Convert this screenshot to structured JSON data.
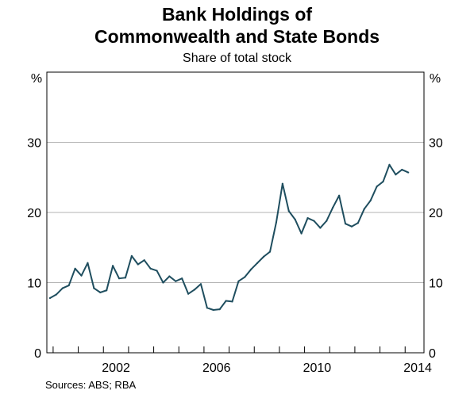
{
  "chart_data": {
    "type": "line",
    "title_lines": [
      "Bank Holdings of",
      "Commonwealth and State Bonds"
    ],
    "subtitle": "Share of total stock",
    "ylabel_left": "%",
    "ylabel_right": "%",
    "ylim": [
      0,
      40
    ],
    "yticks": [
      0,
      10,
      20,
      30
    ],
    "xlim": [
      1999.75,
      2014.75
    ],
    "xtick_labels": [
      {
        "value": 2002,
        "label": "2002"
      },
      {
        "value": 2006,
        "label": "2006"
      },
      {
        "value": 2010,
        "label": "2010"
      },
      {
        "value": 2014,
        "label": "2014"
      }
    ],
    "grid": "horizontal",
    "line_color": "#1f4e5f",
    "series": [
      {
        "x": [
          1999.875,
          2000.125,
          2000.375,
          2000.625,
          2000.875,
          2001.125,
          2001.375,
          2001.625,
          2001.875,
          2002.125,
          2002.375,
          2002.625,
          2002.875,
          2003.125,
          2003.375,
          2003.625,
          2003.875,
          2004.125,
          2004.375,
          2004.625,
          2004.875,
          2005.125,
          2005.375,
          2005.625,
          2005.875,
          2006.125,
          2006.375,
          2006.625,
          2006.875,
          2007.125,
          2007.375,
          2007.625,
          2007.875,
          2008.125,
          2008.375,
          2008.625,
          2008.875,
          2009.125,
          2009.375,
          2009.625,
          2009.875,
          2010.125,
          2010.375,
          2010.625,
          2010.875,
          2011.125,
          2011.375,
          2011.625,
          2011.875,
          2012.125,
          2012.375,
          2012.625,
          2012.875,
          2013.125,
          2013.375,
          2013.625,
          2013.875,
          2014.125
        ],
        "values": [
          7.8,
          8.3,
          9.2,
          9.6,
          12.0,
          11.0,
          12.8,
          9.2,
          8.6,
          8.9,
          12.4,
          10.6,
          10.7,
          13.8,
          12.6,
          13.2,
          12.0,
          11.7,
          10.0,
          10.9,
          10.2,
          10.6,
          8.4,
          9.0,
          9.8,
          6.4,
          6.1,
          6.2,
          7.4,
          7.3,
          10.2,
          10.8,
          11.9,
          12.8,
          13.7,
          14.4,
          18.6,
          24.1,
          20.2,
          19.0,
          17.0,
          19.2,
          18.8,
          17.8,
          18.8,
          20.7,
          22.4,
          18.4,
          18.0,
          18.5,
          20.5,
          21.7,
          23.7,
          24.4,
          26.8,
          25.4,
          26.1,
          25.7
        ]
      }
    ],
    "source": "Sources:   ABS; RBA"
  }
}
